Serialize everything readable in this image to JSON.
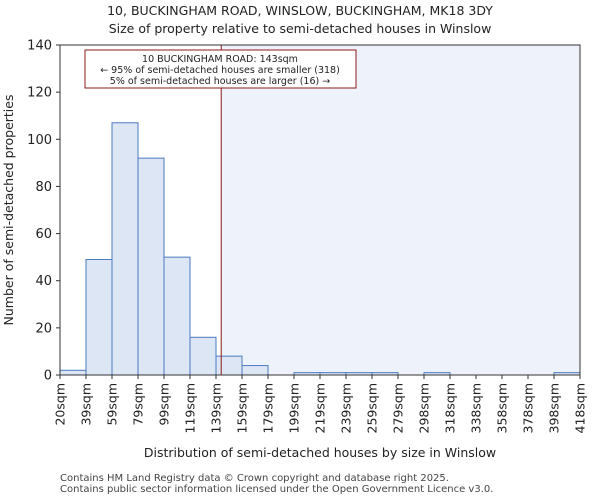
{
  "header": {
    "title_line1": "10, BUCKINGHAM ROAD, WINSLOW, BUCKINGHAM, MK18 3DY",
    "title_line2": "Size of property relative to semi-detached houses in Winslow"
  },
  "footer": {
    "line1": "Contains HM Land Registry data © Crown copyright and database right 2025.",
    "line2": "Contains public sector information licensed under the Open Government Licence v3.0."
  },
  "colors": {
    "bar_fill": "#dce6f5",
    "bar_stroke": "#4a7bbf",
    "highlight_region": "#eef2fb",
    "marker_line": "#8b1a1a",
    "annotation_border": "#8b1a1a"
  },
  "chart_data": {
    "type": "bar",
    "title": "Size of property relative to semi-detached houses in Winslow",
    "xlabel": "Distribution of semi-detached houses by size in Winslow",
    "ylabel": "Number of semi-detached properties",
    "ylim": [
      0,
      140
    ],
    "yticks": [
      0,
      20,
      40,
      60,
      80,
      100,
      120,
      140
    ],
    "bin_edges": [
      20,
      39,
      59,
      79,
      99,
      119,
      139,
      159,
      179,
      199,
      219,
      239,
      259,
      279,
      298,
      318,
      338,
      358,
      378,
      398,
      418
    ],
    "tick_labels": [
      "20sqm",
      "39sqm",
      "59sqm",
      "79sqm",
      "99sqm",
      "119sqm",
      "139sqm",
      "159sqm",
      "179sqm",
      "199sqm",
      "219sqm",
      "239sqm",
      "259sqm",
      "279sqm",
      "298sqm",
      "318sqm",
      "338sqm",
      "358sqm",
      "378sqm",
      "398sqm",
      "418sqm"
    ],
    "values": [
      2,
      49,
      107,
      92,
      50,
      16,
      8,
      4,
      0,
      1,
      1,
      1,
      1,
      0,
      1,
      0,
      0,
      0,
      0,
      1
    ],
    "marker_value": 143,
    "grid": false,
    "annotation": {
      "line1": "10 BUCKINGHAM ROAD: 143sqm",
      "line2": "← 95% of semi-detached houses are smaller (318)",
      "line3": "5% of semi-detached houses are larger (16) →"
    }
  }
}
